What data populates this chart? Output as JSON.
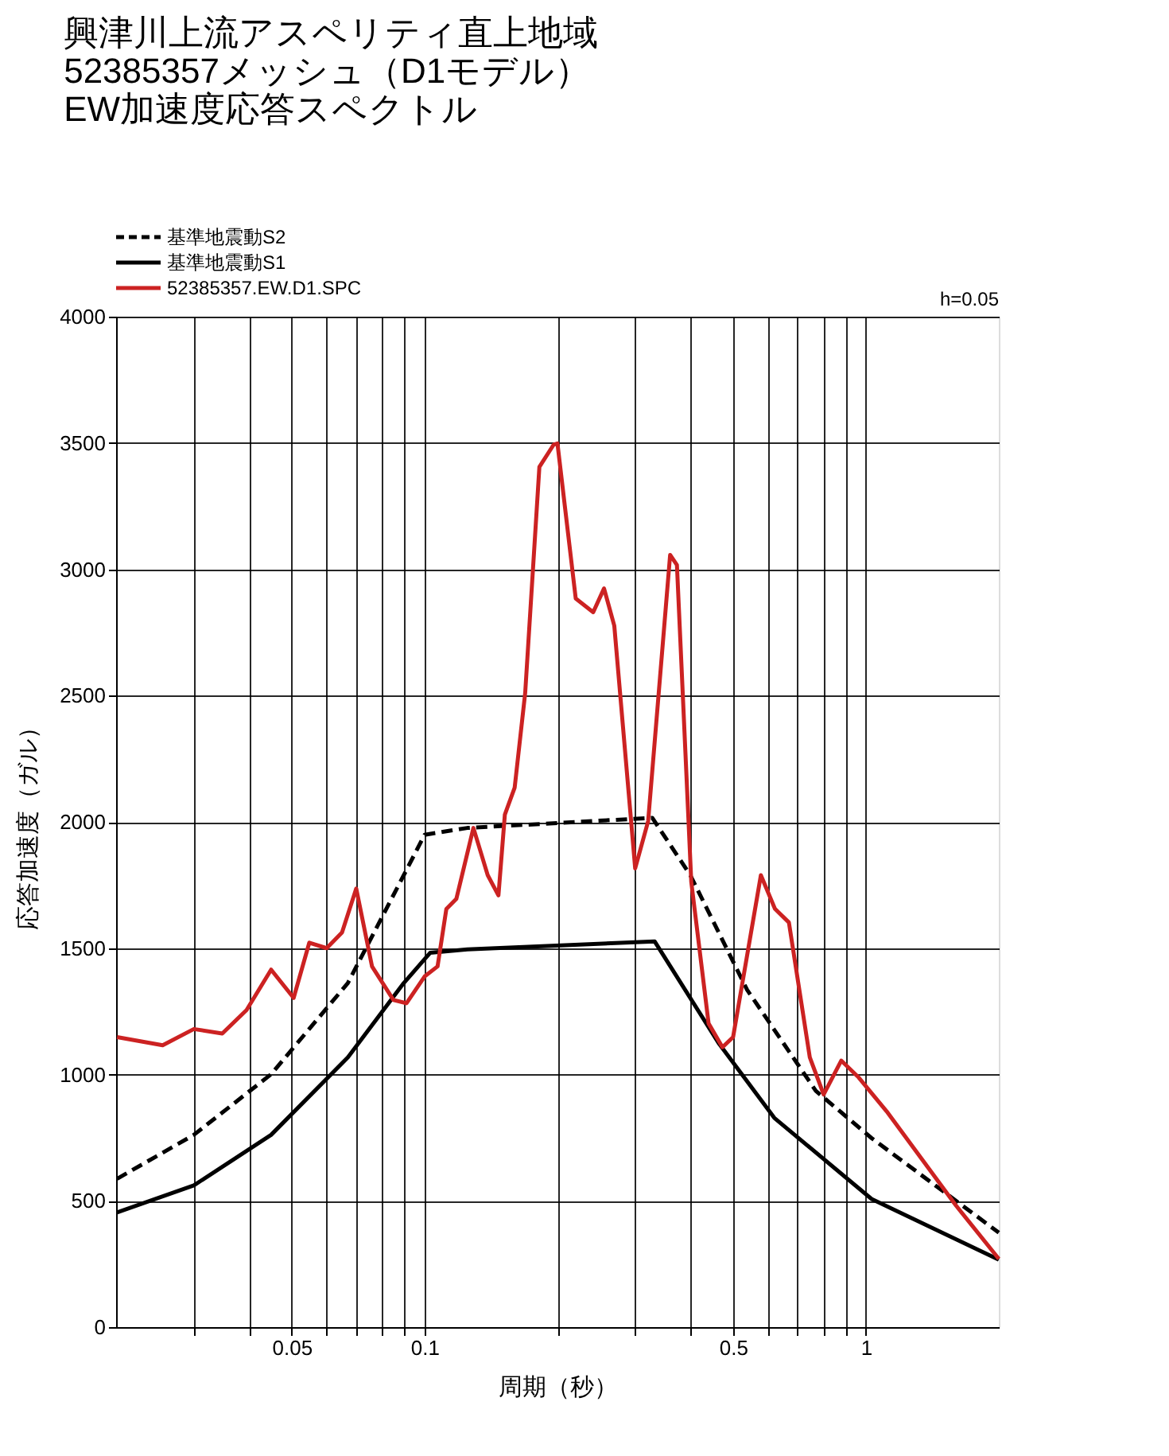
{
  "chart_data": {
    "type": "line",
    "title": [
      "興津川上流アスペリティ直上地域",
      "52385357メッシュ（D1モデル）",
      "EW加速度応答スペクトル"
    ],
    "xlabel": "周期（秒）",
    "ylabel": "応答加速度（ガル）",
    "log": "x",
    "grid": true,
    "legend": "top left",
    "marker": "none",
    "xlim": [
      0.02,
      2
    ],
    "xticks": [
      {
        "value": 0.03,
        "label": null
      },
      {
        "value": 0.04,
        "label": null
      },
      0.05,
      {
        "value": 0.06,
        "label": null
      },
      {
        "value": 0.07,
        "label": null
      },
      {
        "value": 0.08,
        "label": null
      },
      {
        "value": 0.09,
        "label": null
      },
      0.1,
      {
        "value": 0.2,
        "label": null
      },
      {
        "value": 0.3,
        "label": null
      },
      {
        "value": 0.4,
        "label": null
      },
      0.5,
      {
        "value": 0.6,
        "label": null
      },
      {
        "value": 0.7,
        "label": null
      },
      {
        "value": 0.8,
        "label": null
      },
      {
        "value": 0.9,
        "label": null
      },
      1
    ],
    "ylim": [
      0,
      4000
    ],
    "yticks": [
      0,
      500,
      1000,
      1500,
      2000,
      2500,
      3000,
      3500,
      4000
    ],
    "annotations": [
      "h=0.05"
    ],
    "series": [
      {
        "name": "基準地震動S2",
        "color": "#000000",
        "line_style": "dashed",
        "x": [
          0.0201,
          0.03,
          0.0449,
          0.067,
          0.0897,
          0.1,
          0.125,
          0.328,
          0.4,
          0.538,
          0.77,
          1.03,
          2
        ],
        "values": [
          587,
          761,
          1001,
          1362,
          1789,
          1949,
          1976,
          2016,
          1789,
          1335,
          935,
          748,
          374
        ]
      },
      {
        "name": "基準地震動S1",
        "color": "#000000",
        "line_style": "solid",
        "x": [
          0.0201,
          0.03,
          0.0449,
          0.067,
          0.0897,
          0.103,
          0.125,
          0.332,
          0.465,
          0.62,
          1.03,
          2
        ],
        "values": [
          454,
          561,
          761,
          1068,
          1362,
          1482,
          1495,
          1527,
          1121,
          828,
          507,
          267
        ]
      },
      {
        "name": "52385357.EW.D1.SPC",
        "color": "#cc2222",
        "line_style": "solid",
        "x": [
          0.0201,
          0.0255,
          0.03,
          0.0348,
          0.0395,
          0.0449,
          0.0505,
          0.0548,
          0.06,
          0.065,
          0.07,
          0.076,
          0.085,
          0.091,
          0.1,
          0.107,
          0.112,
          0.118,
          0.129,
          0.139,
          0.147,
          0.152,
          0.16,
          0.169,
          0.182,
          0.196,
          0.2,
          0.22,
          0.241,
          0.255,
          0.269,
          0.3,
          0.321,
          0.36,
          0.373,
          0.402,
          0.44,
          0.473,
          0.5,
          0.578,
          0.622,
          0.669,
          0.746,
          0.802,
          0.879,
          0.963,
          1.114,
          1.6,
          2
        ],
        "values": [
          1148,
          1116,
          1180,
          1162,
          1255,
          1415,
          1303,
          1522,
          1500,
          1562,
          1736,
          1428,
          1295,
          1282,
          1388,
          1428,
          1655,
          1695,
          1976,
          1789,
          1709,
          2029,
          2136,
          2510,
          3405,
          3493,
          3498,
          2884,
          2830,
          2924,
          2777,
          1816,
          2003,
          3057,
          3017,
          1762,
          1202,
          1108,
          1148,
          1789,
          1656,
          1602,
          1068,
          921,
          1055,
          988,
          854,
          481,
          270
        ]
      }
    ]
  }
}
